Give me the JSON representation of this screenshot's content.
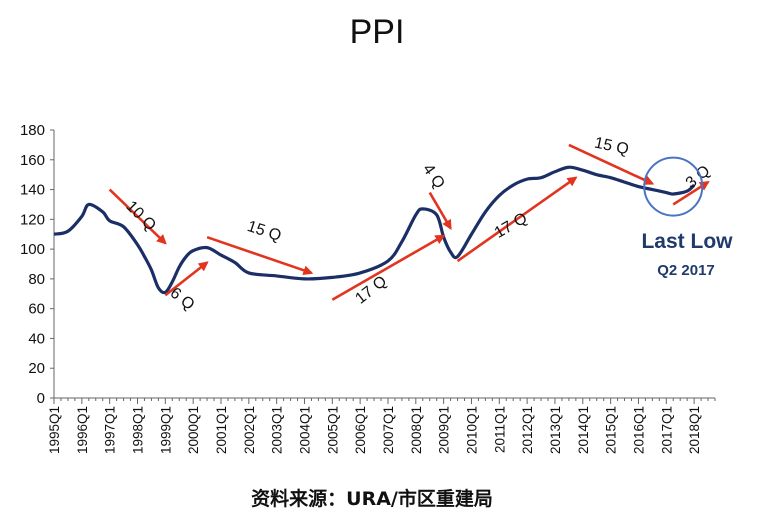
{
  "chart_data": {
    "type": "line",
    "title": "PPI",
    "xlabel": "",
    "ylabel": "",
    "ylim": [
      0,
      180
    ],
    "yticks": [
      0,
      20,
      40,
      60,
      80,
      100,
      120,
      140,
      160,
      180
    ],
    "xtick_labels": [
      "1995Q1",
      "1996Q1",
      "1997Q1",
      "1998Q1",
      "1999Q1",
      "2000Q1",
      "2001Q1",
      "2002Q1",
      "2003Q1",
      "2004Q1",
      "2005Q1",
      "2006Q1",
      "2007Q1",
      "2008Q1",
      "2009Q1",
      "2010Q1",
      "2011Q1",
      "2012Q1",
      "2013Q1",
      "2014Q1",
      "2015Q1",
      "2016Q1",
      "2017Q1",
      "2018Q1"
    ],
    "series": [
      {
        "color": "#1b2f66",
        "points": [
          [
            "1995Q1",
            110
          ],
          [
            "1995Q3",
            112
          ],
          [
            "1996Q1",
            122
          ],
          [
            "1996Q2",
            130
          ],
          [
            "1996Q4",
            125
          ],
          [
            "1997Q1",
            119
          ],
          [
            "1997Q3",
            115
          ],
          [
            "1998Q1",
            103
          ],
          [
            "1998Q2",
            95
          ],
          [
            "1998Q3",
            86
          ],
          [
            "1998Q4",
            74
          ],
          [
            "1999Q1",
            71
          ],
          [
            "1999Q2",
            78
          ],
          [
            "1999Q3",
            88
          ],
          [
            "1999Q4",
            95
          ],
          [
            "2000Q1",
            99
          ],
          [
            "2000Q3",
            101
          ],
          [
            "2001Q1",
            96
          ],
          [
            "2001Q3",
            91
          ],
          [
            "2002Q1",
            84
          ],
          [
            "2003Q1",
            82
          ],
          [
            "2004Q1",
            80
          ],
          [
            "2005Q1",
            81
          ],
          [
            "2006Q1",
            84
          ],
          [
            "2007Q1",
            92
          ],
          [
            "2007Q3",
            105
          ],
          [
            "2008Q1",
            123
          ],
          [
            "2008Q2",
            127
          ],
          [
            "2008Q4",
            123
          ],
          [
            "2009Q1",
            108
          ],
          [
            "2009Q2",
            98
          ],
          [
            "2009Q3",
            95
          ],
          [
            "2010Q1",
            110
          ],
          [
            "2010Q3",
            125
          ],
          [
            "2011Q1",
            136
          ],
          [
            "2011Q3",
            143
          ],
          [
            "2012Q1",
            147
          ],
          [
            "2012Q3",
            148
          ],
          [
            "2013Q1",
            152
          ],
          [
            "2013Q3",
            155
          ],
          [
            "2014Q1",
            153
          ],
          [
            "2014Q3",
            150
          ],
          [
            "2015Q1",
            148
          ],
          [
            "2015Q3",
            145
          ],
          [
            "2016Q1",
            142
          ],
          [
            "2016Q3",
            140
          ],
          [
            "2017Q1",
            138
          ],
          [
            "2017Q2",
            137
          ],
          [
            "2017Q4",
            139
          ],
          [
            "2018Q1",
            143
          ]
        ]
      }
    ],
    "grid": false,
    "annotations": [
      {
        "label": "10 Q",
        "arrow_from": [
          "1997Q1",
          140
        ],
        "arrow_to": [
          "1999Q1",
          104
        ],
        "label_at": [
          "1998Q1",
          120
        ],
        "rotate": 45
      },
      {
        "label": "6 Q",
        "arrow_from": [
          "1999Q1",
          69
        ],
        "arrow_to": [
          "2000Q3",
          91
        ],
        "label_at": [
          "1999Q3",
          64
        ],
        "rotate": 38
      },
      {
        "label": "15 Q",
        "arrow_from": [
          "2000Q3",
          108
        ],
        "arrow_to": [
          "2004Q2",
          84
        ],
        "label_at": [
          "2002Q3",
          109
        ],
        "rotate": 18
      },
      {
        "label": "17 Q",
        "arrow_from": [
          "2005Q1",
          66
        ],
        "arrow_to": [
          "2009Q1",
          109
        ],
        "label_at": [
          "2006Q3",
          70
        ],
        "rotate": -38
      },
      {
        "label": "4 Q",
        "arrow_from": [
          "2008Q3",
          138
        ],
        "arrow_to": [
          "2009Q2",
          114
        ],
        "label_at": [
          "2008Q3",
          147
        ],
        "rotate": 55
      },
      {
        "label": "17 Q",
        "arrow_from": [
          "2009Q3",
          92
        ],
        "arrow_to": [
          "2013Q4",
          148
        ],
        "label_at": [
          "2011Q3",
          113
        ],
        "rotate": -30
      },
      {
        "label": "15 Q",
        "arrow_from": [
          "2013Q3",
          170
        ],
        "arrow_to": [
          "2016Q3",
          144
        ],
        "label_at": [
          "2015Q1",
          166
        ],
        "rotate": 12
      },
      {
        "label": "3 Q",
        "arrow_from": [
          "2017Q2",
          130
        ],
        "arrow_to": [
          "2018Q3",
          145
        ],
        "label_at": [
          "2018Q2",
          146
        ],
        "rotate": -40
      }
    ],
    "highlight": {
      "label": "Last Low",
      "sublabel": "Q2 2017",
      "at": [
        "2017Q2",
        142
      ],
      "color": "#4a73c4"
    },
    "arrow_color": "#e2351f"
  },
  "source_text": "资料来源：URA/市区重建局"
}
